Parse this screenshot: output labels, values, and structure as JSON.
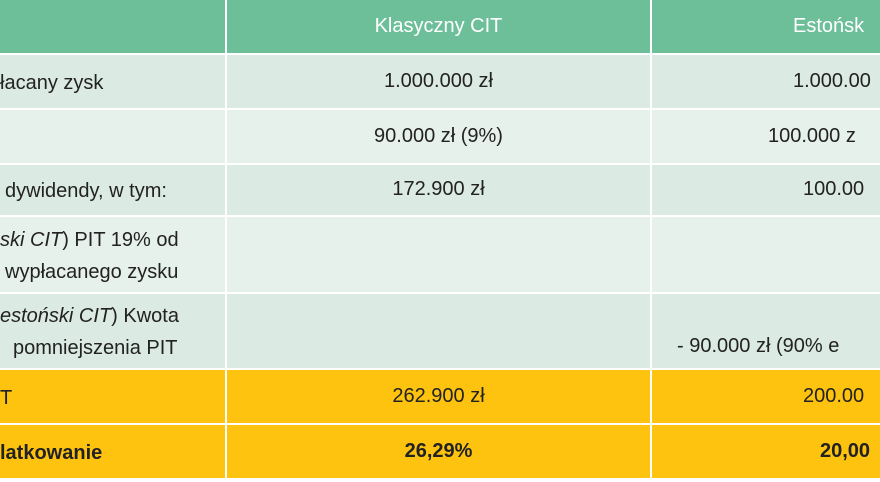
{
  "table": {
    "header": {
      "classic": "Klasyczny CIT",
      "estonian": "Estońsk"
    },
    "rows": [
      {
        "label": [
          {
            "text": "łacany zysk"
          }
        ],
        "classic": "1.000.000 zł",
        "estonian": "1.000.00"
      },
      {
        "classic": "90.000 zł (9%)",
        "estonian": "100.000 z"
      },
      {
        "label": [
          {
            "text": "dywidendy, w tym:"
          }
        ],
        "classic": "172.900 zł",
        "estonian": "100.00"
      },
      {
        "label": [
          {
            "italic": "ski CIT",
            "text": ") PIT 19% od"
          },
          {
            "text": "wypłacanego zysku"
          }
        ]
      },
      {
        "label": [
          {
            "italic": "estoński CIT",
            "text": ") Kwota"
          },
          {
            "text": "pomniejszenia PIT"
          }
        ],
        "estonian": "- 90.000 zł (90% e"
      },
      {
        "label": [
          {
            "text": "T"
          }
        ],
        "classic": "262.900 zł",
        "estonian": "200.00"
      },
      {
        "label": [
          {
            "text": "latkowanie"
          }
        ],
        "classic": "26,29%",
        "estonian": "20,00"
      }
    ]
  }
}
